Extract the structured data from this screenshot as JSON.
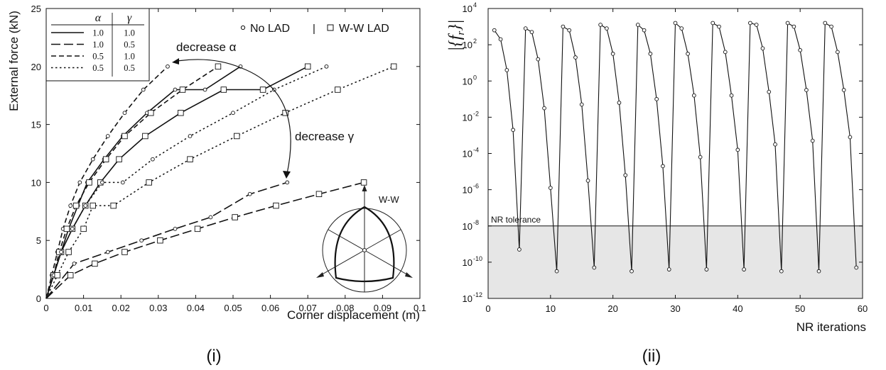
{
  "chart_data": [
    {
      "type": "line",
      "caption": "(i)",
      "xlabel": "Corner displacement (m)",
      "ylabel": "External force (kN)",
      "xlim": [
        0,
        0.1
      ],
      "ylim": [
        0,
        25
      ],
      "xticks": [
        0,
        0.01,
        0.02,
        0.03,
        0.04,
        0.05,
        0.06,
        0.07,
        0.08,
        0.09,
        0.1
      ],
      "xtick_labels": [
        "0",
        "0.01",
        "0.02",
        "0.03",
        "0.04",
        "0.05",
        "0.06",
        "0.07",
        "0.08",
        "0.09",
        "0.1"
      ],
      "yticks": [
        0,
        5,
        10,
        15,
        20,
        25
      ],
      "ytick_labels": [
        "0",
        "5",
        "10",
        "15",
        "20",
        "25"
      ],
      "grid": false,
      "legend": {
        "placement": "top-left",
        "headers": [
          "α",
          "γ"
        ],
        "rows": [
          {
            "style": "solid",
            "alpha": "1.0",
            "gamma": "1.0"
          },
          {
            "style": "long-dash",
            "alpha": "1.0",
            "gamma": "0.5"
          },
          {
            "style": "dash",
            "alpha": "0.5",
            "gamma": "1.0"
          },
          {
            "style": "dot",
            "alpha": "0.5",
            "gamma": "0.5"
          }
        ],
        "markers": [
          {
            "marker": "circle",
            "label": "No LAD"
          },
          {
            "marker": "square",
            "label": "W-W LAD"
          }
        ],
        "separator": "|"
      },
      "annotations": {
        "decrease_alpha": "decrease α",
        "decrease_gamma": "decrease γ",
        "inset_label": "W-W"
      },
      "series": [
        {
          "style": "solid",
          "marker": "circle",
          "x": [
            0,
            0.002,
            0.004,
            0.006,
            0.0085,
            0.011,
            0.0155,
            0.0205,
            0.027,
            0.0345,
            0.0425,
            0.052
          ],
          "y": [
            0,
            2,
            4,
            6,
            8,
            10,
            12,
            14,
            16,
            18,
            18,
            20
          ]
        },
        {
          "style": "solid",
          "marker": "square",
          "x": [
            0,
            0.002,
            0.004,
            0.007,
            0.0105,
            0.0145,
            0.0195,
            0.0265,
            0.036,
            0.0475,
            0.058,
            0.07
          ],
          "y": [
            0,
            2,
            4,
            6,
            8,
            10,
            12,
            14,
            16,
            18,
            18,
            20
          ]
        },
        {
          "style": "long-dash",
          "marker": "circle",
          "x": [
            0,
            0.0075,
            0.0165,
            0.0255,
            0.0345,
            0.044,
            0.0545,
            0.0645
          ],
          "y": [
            0,
            3,
            4,
            5,
            6,
            7,
            9,
            10
          ]
        },
        {
          "style": "long-dash",
          "marker": "square",
          "x": [
            0,
            0.0065,
            0.013,
            0.021,
            0.0305,
            0.0405,
            0.0505,
            0.0615,
            0.073,
            0.085
          ],
          "y": [
            0,
            2,
            3,
            4,
            5,
            6,
            7,
            8,
            9,
            10
          ]
        },
        {
          "style": "dash",
          "marker": "circle",
          "x": [
            0,
            0.0015,
            0.003,
            0.0045,
            0.0065,
            0.009,
            0.0125,
            0.0165,
            0.021,
            0.026,
            0.0325
          ],
          "y": [
            0,
            2,
            4,
            6,
            8,
            10,
            12,
            14,
            16,
            18,
            20
          ]
        },
        {
          "style": "dash",
          "marker": "square",
          "x": [
            0,
            0.002,
            0.0035,
            0.0055,
            0.008,
            0.0115,
            0.016,
            0.021,
            0.028,
            0.0365,
            0.046
          ],
          "y": [
            0,
            2,
            4,
            6,
            8,
            10,
            12,
            14,
            16,
            18,
            20
          ]
        },
        {
          "style": "dot",
          "marker": "circle",
          "x": [
            0,
            0.002,
            0.004,
            0.007,
            0.0105,
            0.015,
            0.0205,
            0.0285,
            0.0385,
            0.05,
            0.061,
            0.075
          ],
          "y": [
            0,
            2,
            4,
            6,
            8,
            10,
            10,
            12,
            14,
            16,
            18,
            20
          ]
        },
        {
          "style": "dot",
          "marker": "square",
          "x": [
            0,
            0.003,
            0.006,
            0.01,
            0.0125,
            0.018,
            0.0275,
            0.0385,
            0.051,
            0.064,
            0.078,
            0.093
          ],
          "y": [
            0,
            2,
            4,
            6,
            8,
            8,
            10,
            12,
            14,
            16,
            18,
            20
          ]
        }
      ]
    },
    {
      "type": "line",
      "caption": "(ii)",
      "xlabel": "NR iterations",
      "ylabel": "|{f_r}|",
      "yscale": "log",
      "xlim": [
        0,
        60
      ],
      "ylim": [
        1e-12,
        10000.0
      ],
      "xticks": [
        0,
        10,
        20,
        30,
        40,
        50,
        60
      ],
      "xtick_labels": [
        "0",
        "10",
        "20",
        "30",
        "40",
        "50",
        "60"
      ],
      "ytick_exponents": [
        -12,
        -10,
        -8,
        -6,
        -4,
        -2,
        0,
        2,
        4
      ],
      "grid": false,
      "tolerance": {
        "value": 1e-08,
        "label": "NR tolerance"
      },
      "series": [
        {
          "marker": "circle",
          "x": [
            1,
            2,
            3,
            4,
            5,
            6,
            7,
            8,
            9,
            10,
            11,
            12,
            13,
            14,
            15,
            16,
            17,
            18,
            19,
            20,
            21,
            22,
            23,
            24,
            25,
            26,
            27,
            28,
            29,
            30,
            31,
            32,
            33,
            34,
            35,
            36,
            37,
            38,
            39,
            40,
            41,
            42,
            43,
            44,
            45,
            46,
            47,
            48,
            49,
            50,
            51,
            52,
            53,
            54,
            55,
            56,
            57,
            58,
            59
          ],
          "log10_y": [
            2.8,
            2.3,
            0.6,
            -2.7,
            -9.3,
            2.9,
            2.7,
            1.2,
            -1.5,
            -5.9,
            -10.5,
            3.0,
            2.8,
            1.3,
            -1.3,
            -5.5,
            -10.3,
            3.1,
            2.9,
            1.5,
            -1.2,
            -5.2,
            -10.5,
            3.1,
            2.8,
            1.5,
            -1.0,
            -4.7,
            -10.4,
            3.2,
            2.9,
            1.5,
            -0.8,
            -4.2,
            -10.4,
            3.2,
            3.0,
            1.6,
            -0.8,
            -3.8,
            -10.4,
            3.2,
            3.1,
            1.8,
            -0.6,
            -3.5,
            -10.5,
            3.2,
            3.0,
            1.7,
            -0.5,
            -3.3,
            -10.5,
            3.2,
            3.0,
            1.6,
            -0.5,
            -3.1,
            -10.3
          ]
        }
      ]
    }
  ]
}
